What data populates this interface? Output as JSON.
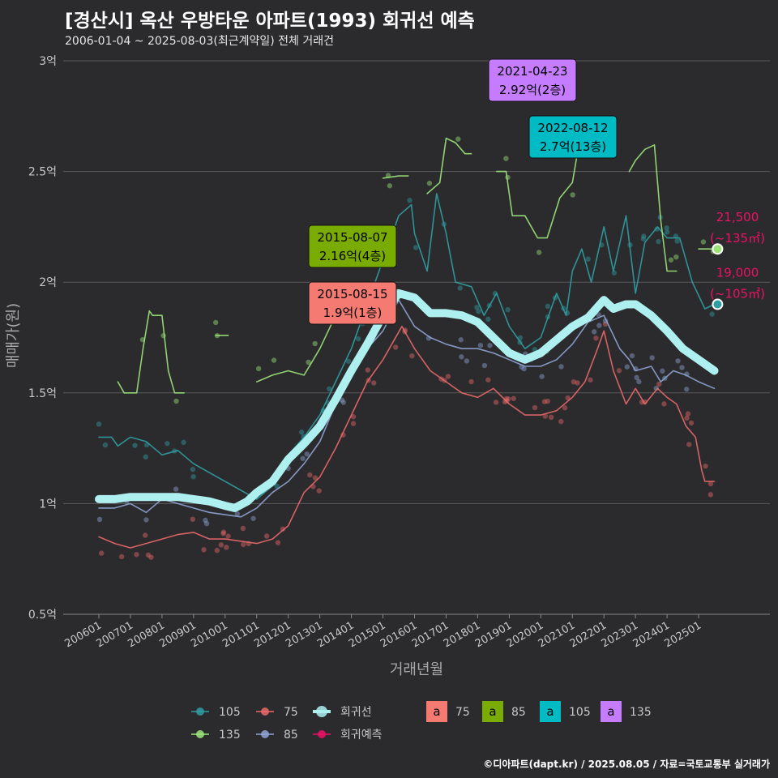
{
  "title": "[경산시] 옥산 우방타운 아파트(1993) 회귀선 예측",
  "subtitle": "2006-01-04 ~ 2025-08-03(최근계약일) 전체 거래건",
  "credit": "©디아파트(dapt.kr) / 2025.08.05 / 자료=국토교통부 실거래가",
  "colors": {
    "s75": "#e9686a",
    "s85": "#8fa4d4",
    "s105": "#2f9ea3",
    "s135": "#9ce47a",
    "reg": "#aeeff0",
    "pred": "#ee1166",
    "bg": "#2b2b2d",
    "grid": "#5a5a5c"
  },
  "chart_data": {
    "type": "line",
    "xlabel": "거래년월",
    "ylabel": "매매가(원)",
    "x_ticks": [
      "200601",
      "200701",
      "200801",
      "200901",
      "201001",
      "201101",
      "201201",
      "201301",
      "201401",
      "201501",
      "201601",
      "201701",
      "201801",
      "201901",
      "202001",
      "202101",
      "202201",
      "202301",
      "202401",
      "202501"
    ],
    "y_ticks": [
      {
        "v": 0.5,
        "label": "0.5억"
      },
      {
        "v": 1,
        "label": "1억"
      },
      {
        "v": 1.5,
        "label": "1.5억"
      },
      {
        "v": 2,
        "label": "2억"
      },
      {
        "v": 2.5,
        "label": "2.5억"
      },
      {
        "v": 3,
        "label": "3억"
      }
    ],
    "ylim": [
      0.5,
      3.0
    ],
    "xlim": [
      2005.5,
      2026.3
    ],
    "series": [
      {
        "name": "105",
        "key": "s105",
        "points": [
          [
            2006.0,
            1.3
          ],
          [
            2006.4,
            1.3
          ],
          [
            2006.6,
            1.26
          ],
          [
            2007.0,
            1.3
          ],
          [
            2007.5,
            1.28
          ],
          [
            2008.0,
            1.22
          ],
          [
            2008.5,
            1.24
          ],
          [
            2009.0,
            1.18
          ],
          [
            2009.5,
            1.14
          ],
          [
            2010.0,
            1.1
          ],
          [
            2010.5,
            1.06
          ],
          [
            2011.0,
            1.02
          ],
          [
            2011.5,
            1.08
          ],
          [
            2012.0,
            1.22
          ],
          [
            2012.5,
            1.3
          ],
          [
            2013.0,
            1.4
          ],
          [
            2013.5,
            1.55
          ],
          [
            2014.0,
            1.7
          ],
          [
            2014.5,
            1.9
          ],
          [
            2015.0,
            2.1
          ],
          [
            2015.5,
            2.3
          ],
          [
            2015.9,
            2.35
          ],
          [
            2016.0,
            2.22
          ],
          [
            2016.4,
            2.05
          ],
          [
            2016.7,
            2.4
          ],
          [
            2017.0,
            2.22
          ],
          [
            2017.3,
            2.0
          ],
          [
            2017.8,
            1.98
          ],
          [
            2018.2,
            1.85
          ],
          [
            2018.6,
            1.95
          ],
          [
            2019.0,
            1.8
          ],
          [
            2019.5,
            1.7
          ],
          [
            2020.0,
            1.75
          ],
          [
            2020.5,
            1.95
          ],
          [
            2020.8,
            1.85
          ],
          [
            2021.0,
            2.05
          ],
          [
            2021.3,
            2.15
          ],
          [
            2021.6,
            2.0
          ],
          [
            2022.0,
            2.25
          ],
          [
            2022.3,
            2.05
          ],
          [
            2022.7,
            2.3
          ],
          [
            2023.0,
            1.95
          ],
          [
            2023.3,
            2.18
          ],
          [
            2023.7,
            2.25
          ],
          [
            2024.0,
            2.2
          ],
          [
            2024.4,
            2.2
          ],
          [
            2024.8,
            2.0
          ],
          [
            2025.2,
            1.88
          ],
          [
            2025.5,
            1.9
          ]
        ]
      },
      {
        "name": "135",
        "key": "s135",
        "segments": [
          [
            [
              2006.6,
              1.55
            ],
            [
              2006.8,
              1.5
            ],
            [
              2007.2,
              1.5
            ],
            [
              2007.4,
              1.7
            ],
            [
              2007.6,
              1.87
            ],
            [
              2007.7,
              1.85
            ],
            [
              2008.0,
              1.85
            ],
            [
              2008.2,
              1.6
            ],
            [
              2008.4,
              1.5
            ],
            [
              2008.7,
              1.5
            ]
          ],
          [
            [
              2009.7,
              1.76
            ],
            [
              2010.1,
              1.76
            ]
          ],
          [
            [
              2011.0,
              1.55
            ],
            [
              2011.5,
              1.58
            ],
            [
              2012.0,
              1.6
            ],
            [
              2012.5,
              1.58
            ],
            [
              2013.0,
              1.7
            ],
            [
              2013.5,
              1.85
            ],
            [
              2013.9,
              1.82
            ]
          ],
          [
            [
              2015.0,
              2.47
            ],
            [
              2015.5,
              2.48
            ],
            [
              2015.8,
              2.48
            ]
          ],
          [
            [
              2016.4,
              2.4
            ],
            [
              2016.8,
              2.45
            ],
            [
              2017.0,
              2.65
            ],
            [
              2017.3,
              2.63
            ],
            [
              2017.6,
              2.58
            ],
            [
              2017.8,
              2.58
            ]
          ],
          [
            [
              2018.6,
              2.5
            ],
            [
              2018.9,
              2.5
            ],
            [
              2019.1,
              2.3
            ],
            [
              2019.5,
              2.3
            ],
            [
              2019.9,
              2.2
            ],
            [
              2020.2,
              2.2
            ],
            [
              2020.6,
              2.38
            ],
            [
              2021.0,
              2.45
            ],
            [
              2021.3,
              2.7
            ]
          ],
          [
            [
              2022.8,
              2.5
            ],
            [
              2023.0,
              2.55
            ],
            [
              2023.3,
              2.6
            ],
            [
              2023.6,
              2.62
            ],
            [
              2023.8,
              2.28
            ],
            [
              2024.0,
              2.05
            ],
            [
              2024.3,
              2.05
            ]
          ],
          [
            [
              2025.0,
              2.15
            ],
            [
              2025.6,
              2.15
            ]
          ]
        ]
      },
      {
        "name": "75",
        "key": "s75",
        "points": [
          [
            2006.0,
            0.85
          ],
          [
            2006.5,
            0.82
          ],
          [
            2007.0,
            0.8
          ],
          [
            2007.5,
            0.82
          ],
          [
            2008.0,
            0.84
          ],
          [
            2008.5,
            0.86
          ],
          [
            2009.0,
            0.87
          ],
          [
            2009.5,
            0.84
          ],
          [
            2010.0,
            0.84
          ],
          [
            2010.5,
            0.83
          ],
          [
            2011.0,
            0.82
          ],
          [
            2011.5,
            0.84
          ],
          [
            2012.0,
            0.9
          ],
          [
            2012.5,
            1.05
          ],
          [
            2013.0,
            1.12
          ],
          [
            2013.5,
            1.25
          ],
          [
            2014.0,
            1.4
          ],
          [
            2014.5,
            1.55
          ],
          [
            2015.0,
            1.65
          ],
          [
            2015.6,
            1.8
          ],
          [
            2016.0,
            1.7
          ],
          [
            2016.5,
            1.6
          ],
          [
            2017.0,
            1.55
          ],
          [
            2017.5,
            1.5
          ],
          [
            2018.0,
            1.48
          ],
          [
            2018.5,
            1.52
          ],
          [
            2019.0,
            1.45
          ],
          [
            2019.5,
            1.4
          ],
          [
            2020.0,
            1.4
          ],
          [
            2020.5,
            1.42
          ],
          [
            2021.0,
            1.48
          ],
          [
            2021.4,
            1.55
          ],
          [
            2021.8,
            1.7
          ],
          [
            2022.0,
            1.78
          ],
          [
            2022.3,
            1.6
          ],
          [
            2022.7,
            1.45
          ],
          [
            2023.0,
            1.52
          ],
          [
            2023.3,
            1.45
          ],
          [
            2023.7,
            1.52
          ],
          [
            2024.0,
            1.48
          ],
          [
            2024.3,
            1.45
          ],
          [
            2024.6,
            1.35
          ],
          [
            2024.9,
            1.3
          ],
          [
            2025.1,
            1.15
          ],
          [
            2025.2,
            1.1
          ],
          [
            2025.5,
            1.1
          ]
        ]
      },
      {
        "name": "85",
        "key": "s85",
        "points": [
          [
            2006.0,
            0.98
          ],
          [
            2006.5,
            0.98
          ],
          [
            2007.0,
            1.0
          ],
          [
            2007.5,
            0.96
          ],
          [
            2008.0,
            1.02
          ],
          [
            2008.5,
            1.0
          ],
          [
            2009.0,
            0.98
          ],
          [
            2009.5,
            0.96
          ],
          [
            2010.0,
            0.95
          ],
          [
            2010.5,
            0.94
          ],
          [
            2011.0,
            0.98
          ],
          [
            2011.5,
            1.05
          ],
          [
            2012.0,
            1.1
          ],
          [
            2012.5,
            1.18
          ],
          [
            2013.0,
            1.28
          ],
          [
            2013.5,
            1.45
          ],
          [
            2014.0,
            1.6
          ],
          [
            2014.5,
            1.7
          ],
          [
            2015.0,
            1.78
          ],
          [
            2015.5,
            1.92
          ],
          [
            2016.0,
            1.8
          ],
          [
            2016.5,
            1.75
          ],
          [
            2017.0,
            1.72
          ],
          [
            2017.5,
            1.7
          ],
          [
            2018.0,
            1.7
          ],
          [
            2018.5,
            1.68
          ],
          [
            2019.0,
            1.65
          ],
          [
            2019.5,
            1.62
          ],
          [
            2020.0,
            1.62
          ],
          [
            2020.5,
            1.65
          ],
          [
            2021.0,
            1.72
          ],
          [
            2021.5,
            1.82
          ],
          [
            2022.0,
            1.85
          ],
          [
            2022.5,
            1.7
          ],
          [
            2022.8,
            1.65
          ],
          [
            2023.0,
            1.6
          ],
          [
            2023.5,
            1.62
          ],
          [
            2023.8,
            1.55
          ],
          [
            2024.2,
            1.6
          ],
          [
            2024.6,
            1.58
          ],
          [
            2025.0,
            1.55
          ],
          [
            2025.5,
            1.52
          ]
        ]
      },
      {
        "name": "회귀선",
        "key": "reg",
        "points": [
          [
            2006.0,
            1.02
          ],
          [
            2006.5,
            1.02
          ],
          [
            2007.0,
            1.03
          ],
          [
            2007.5,
            1.03
          ],
          [
            2008.0,
            1.03
          ],
          [
            2008.5,
            1.03
          ],
          [
            2009.0,
            1.02
          ],
          [
            2009.5,
            1.01
          ],
          [
            2010.0,
            0.99
          ],
          [
            2010.3,
            0.98
          ],
          [
            2010.7,
            1.01
          ],
          [
            2011.0,
            1.05
          ],
          [
            2011.5,
            1.1
          ],
          [
            2012.0,
            1.2
          ],
          [
            2012.5,
            1.27
          ],
          [
            2013.0,
            1.35
          ],
          [
            2013.5,
            1.47
          ],
          [
            2014.0,
            1.6
          ],
          [
            2014.5,
            1.72
          ],
          [
            2015.0,
            1.85
          ],
          [
            2015.5,
            1.95
          ],
          [
            2016.0,
            1.93
          ],
          [
            2016.5,
            1.86
          ],
          [
            2017.0,
            1.86
          ],
          [
            2017.5,
            1.85
          ],
          [
            2018.0,
            1.82
          ],
          [
            2018.5,
            1.75
          ],
          [
            2019.0,
            1.68
          ],
          [
            2019.5,
            1.65
          ],
          [
            2020.0,
            1.68
          ],
          [
            2020.5,
            1.74
          ],
          [
            2021.0,
            1.8
          ],
          [
            2021.5,
            1.84
          ],
          [
            2022.0,
            1.92
          ],
          [
            2022.3,
            1.88
          ],
          [
            2022.7,
            1.9
          ],
          [
            2023.0,
            1.9
          ],
          [
            2023.5,
            1.85
          ],
          [
            2024.0,
            1.78
          ],
          [
            2024.5,
            1.7
          ],
          [
            2025.0,
            1.65
          ],
          [
            2025.5,
            1.6
          ]
        ]
      }
    ],
    "labels": [
      {
        "text_date": "2021-04-23",
        "text_value": "2.92억(2층)",
        "key": "s135",
        "x": 2020.85,
        "y": 2.92
      },
      {
        "text_date": "2022-08-12",
        "text_value": "2.7억(13층)",
        "key": "s105",
        "x": 2022.6,
        "y": 2.7
      },
      {
        "text_date": "2015-08-07",
        "text_value": "2.16억(4층)",
        "key": "s135",
        "x": 2015.6,
        "y": 2.16
      },
      {
        "text_date": "2015-08-15",
        "text_value": "1.9억(1층)",
        "key": "s75",
        "x": 2015.62,
        "y": 1.9
      }
    ],
    "predictions": [
      {
        "price": "21,500",
        "area": "(~135㎡)",
        "x": 2025.6,
        "y": 2.15,
        "key": "s135"
      },
      {
        "price": "19,000",
        "area": "(~105㎡)",
        "x": 2025.6,
        "y": 1.9,
        "key": "s105"
      }
    ],
    "legend_lines": [
      {
        "name": "105",
        "key": "s105"
      },
      {
        "name": "75",
        "key": "s75"
      },
      {
        "name": "회귀선",
        "key": "reg"
      },
      {
        "name": "135",
        "key": "s135"
      },
      {
        "name": "85",
        "key": "s85"
      },
      {
        "name": "회귀예측",
        "key": "pred"
      }
    ],
    "legend_boxes": [
      {
        "letter": "a",
        "name": "75",
        "key": "s75"
      },
      {
        "letter": "a",
        "name": "85",
        "key": "s85b"
      },
      {
        "letter": "a",
        "name": "105",
        "key": "s105b"
      },
      {
        "letter": "a",
        "name": "135",
        "key": "s135b"
      }
    ],
    "box_colors": {
      "s75": "#f57b72",
      "s85b": "#7aab00",
      "s105b": "#00bbc4",
      "s135b": "#c67cff"
    },
    "legend_position": "bottom"
  }
}
